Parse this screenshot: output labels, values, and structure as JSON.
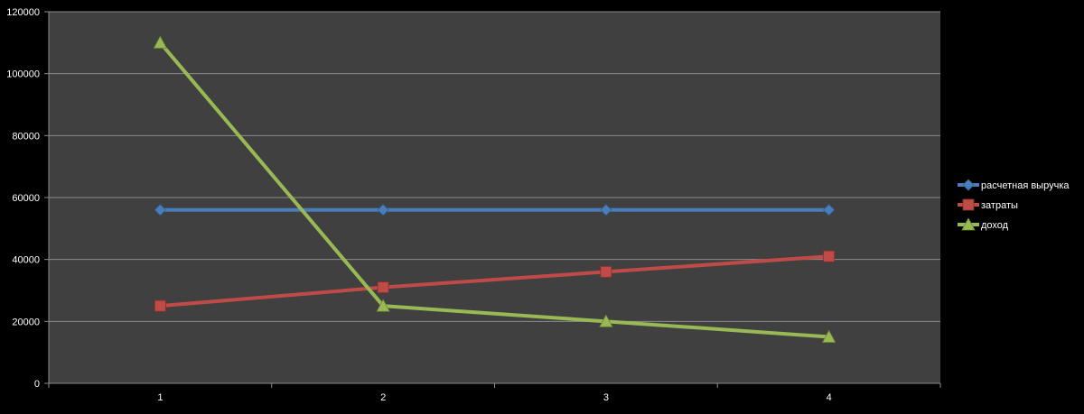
{
  "chart_data": {
    "type": "line",
    "title": "",
    "xlabel": "",
    "ylabel": "",
    "categories": [
      "1",
      "2",
      "3",
      "4"
    ],
    "ylim": [
      0,
      120000
    ],
    "yticks": [
      0,
      20000,
      40000,
      60000,
      80000,
      100000,
      120000
    ],
    "grid": true,
    "legend_position": "right",
    "colors": {
      "background": "#000000",
      "plot_area": "#404040",
      "gridline": "#8c8c8c",
      "axis": "#8c8c8c",
      "text": "#ffffff"
    },
    "series": [
      {
        "name": "расчетная выручка",
        "values": [
          56000,
          56000,
          56000,
          56000
        ],
        "color": "#4a7ebb",
        "marker": "diamond"
      },
      {
        "name": "затраты",
        "values": [
          25000,
          31000,
          36000,
          41000
        ],
        "color": "#be4b48",
        "marker": "square"
      },
      {
        "name": "доход",
        "values": [
          110000,
          25000,
          20000,
          15000
        ],
        "color": "#98b954",
        "marker": "triangle"
      }
    ]
  }
}
